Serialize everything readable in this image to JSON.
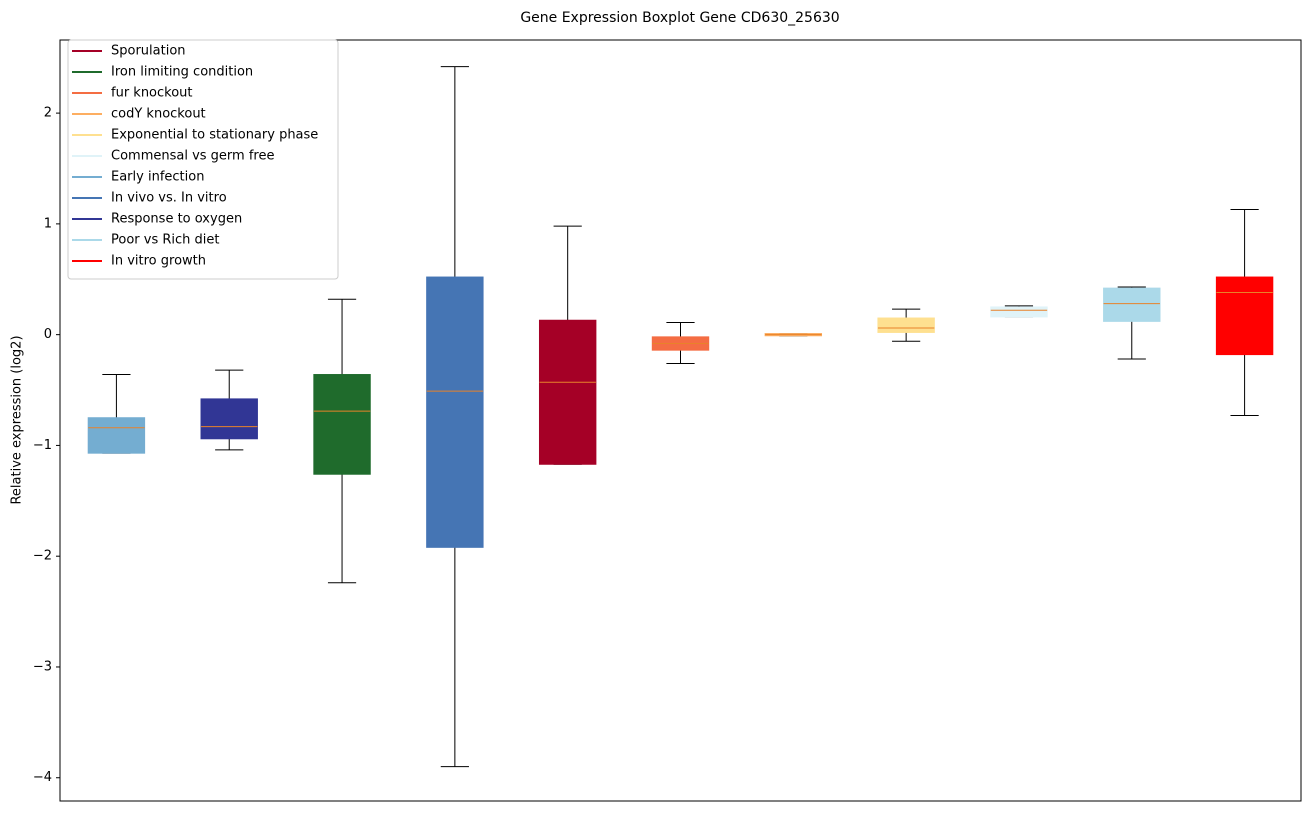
{
  "chart_data": {
    "type": "box",
    "title": "Gene Expression Boxplot Gene CD630_25630",
    "ylabel": "Relative expression (log2)",
    "xlim": [
      0.5,
      11.5
    ],
    "ylim": [
      -4.21,
      2.66
    ],
    "yticks": [
      {
        "value": -4,
        "label": "−4"
      },
      {
        "value": -3,
        "label": "−3"
      },
      {
        "value": -2,
        "label": "−2"
      },
      {
        "value": -1,
        "label": "−1"
      },
      0,
      1,
      2
    ],
    "median_color": "#e8822a",
    "legend": "upper left",
    "series": [
      {
        "name": "Sporulation",
        "color": "#a50026",
        "x": 5,
        "values": [
          -1.17,
          -1.17,
          -0.43,
          0.13,
          0.98
        ]
      },
      {
        "name": "Iron limiting condition",
        "color": "#1f6b2c",
        "x": 3,
        "values": [
          -2.24,
          -1.26,
          -0.69,
          -0.36,
          0.32
        ]
      },
      {
        "name": "fur knockout",
        "color": "#f46d43",
        "x": 6,
        "values": [
          -0.26,
          -0.14,
          -0.08,
          -0.02,
          0.11
        ]
      },
      {
        "name": "codY knockout",
        "color": "#fdae61",
        "x": 7,
        "values": [
          -0.01,
          -0.01,
          0,
          0.01,
          0.01
        ]
      },
      {
        "name": "Exponential to stationary phase",
        "color": "#fee090",
        "x": 8,
        "values": [
          -0.06,
          0.02,
          0.06,
          0.15,
          0.23
        ]
      },
      {
        "name": "Commensal vs germ free",
        "color": "#e0f3f8",
        "x": 9,
        "values": [
          0.16,
          0.16,
          0.22,
          0.25,
          0.26
        ]
      },
      {
        "name": "Early infection",
        "color": "#74add1",
        "x": 1,
        "values": [
          -1.07,
          -1.07,
          -0.84,
          -0.75,
          -0.36
        ]
      },
      {
        "name": "In vivo vs. In vitro",
        "color": "#4575b4",
        "x": 4,
        "values": [
          -3.9,
          -1.92,
          -0.51,
          0.52,
          2.42
        ]
      },
      {
        "name": "Response to oxygen",
        "color": "#313695",
        "x": 2,
        "values": [
          -1.04,
          -0.94,
          -0.83,
          -0.58,
          -0.32
        ]
      },
      {
        "name": "Poor vs Rich diet",
        "color": "#abd9e9",
        "x": 10,
        "values": [
          -0.22,
          0.12,
          0.28,
          0.42,
          0.43
        ]
      },
      {
        "name": "In vitro growth",
        "color": "#ff0000",
        "x": 11,
        "values": [
          -0.73,
          -0.18,
          0.38,
          0.52,
          1.13
        ]
      }
    ]
  }
}
